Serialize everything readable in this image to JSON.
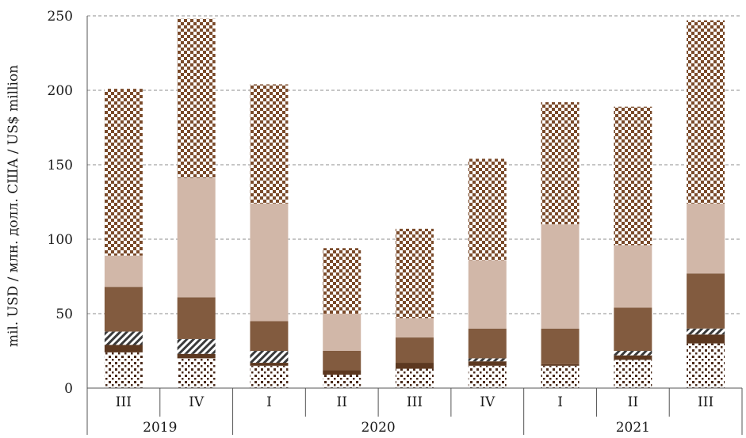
{
  "chart_data": {
    "type": "bar",
    "stacked": true,
    "ylabel": "mil. USD / млн. долл. США  /  US$ million",
    "ylim": [
      0,
      250
    ],
    "yticks": [
      0,
      50,
      100,
      150,
      200,
      250
    ],
    "grid": "horizontal dashed",
    "legend": "none",
    "categories": [
      "III",
      "IV",
      "I",
      "II",
      "III",
      "IV",
      "I",
      "II",
      "III"
    ],
    "groups": [
      {
        "label": "2019",
        "count": 2
      },
      {
        "label": "2020",
        "count": 4
      },
      {
        "label": "2021",
        "count": 3
      }
    ],
    "series": [
      {
        "pattern": "dots",
        "color": "#4a2a1a",
        "values": [
          24,
          20,
          15,
          9,
          13,
          15,
          15,
          19,
          30
        ]
      },
      {
        "pattern": "solid-dark",
        "color": "#5c3820",
        "values": [
          5,
          3,
          2,
          3,
          4,
          3,
          1,
          3,
          6
        ]
      },
      {
        "pattern": "diagonal-stripes",
        "color": "#3a3a3a",
        "values": [
          9,
          10,
          8,
          0,
          0,
          2,
          0,
          3,
          4
        ]
      },
      {
        "pattern": "solid-medium",
        "color": "#825b3f",
        "values": [
          30,
          28,
          20,
          13,
          17,
          20,
          24,
          29,
          37
        ]
      },
      {
        "pattern": "solid-light",
        "color": "#d1b7a8",
        "values": [
          21,
          80,
          79,
          25,
          13,
          46,
          70,
          42,
          47
        ]
      },
      {
        "pattern": "checker",
        "color": "#7a4a2a",
        "values": [
          112,
          107,
          80,
          44,
          60,
          68,
          82,
          93,
          123
        ]
      }
    ]
  }
}
